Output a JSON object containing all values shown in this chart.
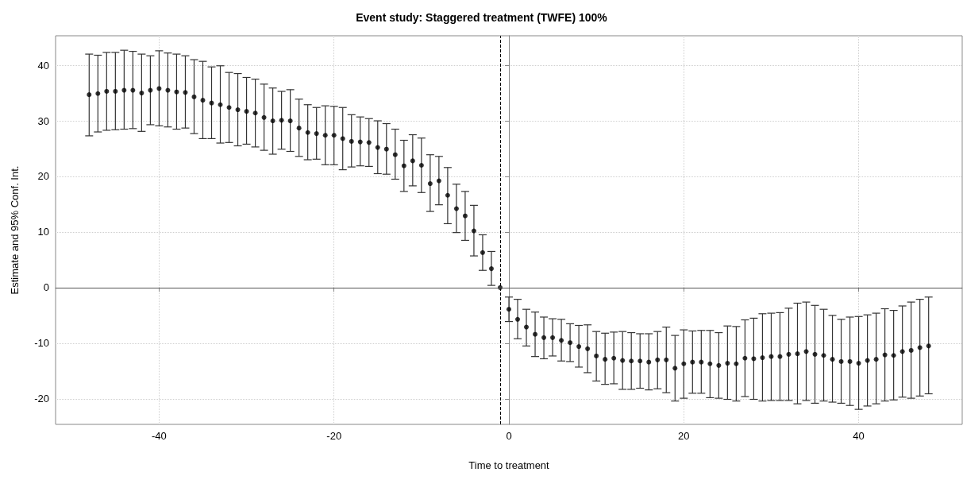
{
  "chart_data": {
    "type": "scatter",
    "title": "Event study: Staggered treatment (TWFE) 100%",
    "xlabel": "Time to treatment",
    "ylabel": "Estimate and 95% Conf. Int.",
    "x": [
      -48,
      -47,
      -46,
      -45,
      -44,
      -43,
      -42,
      -41,
      -40,
      -39,
      -38,
      -37,
      -36,
      -35,
      -34,
      -33,
      -32,
      -31,
      -30,
      -29,
      -28,
      -27,
      -26,
      -25,
      -24,
      -23,
      -22,
      -21,
      -20,
      -19,
      -18,
      -17,
      -16,
      -15,
      -14,
      -13,
      -12,
      -11,
      -10,
      -9,
      -8,
      -7,
      -6,
      -5,
      -4,
      -3,
      -2,
      -1,
      0,
      1,
      2,
      3,
      4,
      5,
      6,
      7,
      8,
      9,
      10,
      11,
      12,
      13,
      14,
      15,
      16,
      17,
      18,
      19,
      20,
      21,
      22,
      23,
      24,
      25,
      26,
      27,
      28,
      29,
      30,
      31,
      32,
      33,
      34,
      35,
      36,
      37,
      38,
      39,
      40,
      41,
      42,
      43,
      44,
      45,
      46,
      47,
      48
    ],
    "series": [
      {
        "color": "#000000",
        "values": [
          34.7,
          34.9,
          35.3,
          35.3,
          35.5,
          35.5,
          35.0,
          35.5,
          35.8,
          35.5,
          35.2,
          35.1,
          34.3,
          33.7,
          33.2,
          32.9,
          32.4,
          32.0,
          31.7,
          31.4,
          30.6,
          30.0,
          30.1,
          30.0,
          28.7,
          27.9,
          27.7,
          27.4,
          27.4,
          26.8,
          26.3,
          26.2,
          26.1,
          25.2,
          24.9,
          23.9,
          21.9,
          22.8,
          22.0,
          18.7,
          19.2,
          16.6,
          14.2,
          12.9,
          10.2,
          6.3,
          3.4,
          0,
          -3.9,
          -5.7,
          -7.1,
          -8.4,
          -9.0,
          -9.0,
          -9.5,
          -9.9,
          -10.6,
          -11.0,
          -12.3,
          -12.9,
          -12.7,
          -13.1,
          -13.2,
          -13.2,
          -13.4,
          -13.0,
          -13.0,
          -14.5,
          -13.7,
          -13.4,
          -13.4,
          -13.7,
          -14.0,
          -13.6,
          -13.7,
          -12.7,
          -12.8,
          -12.6,
          -12.4,
          -12.4,
          -12.0,
          -11.9,
          -11.5,
          -12.0,
          -12.2,
          -12.9,
          -13.3,
          -13.3,
          -13.6,
          -13.1,
          -12.9,
          -12.1,
          -12.2,
          -11.5,
          -11.3,
          -10.8,
          -10.5
        ],
        "errors": [
          [
            27.3,
            42.0
          ],
          [
            28.0,
            41.8
          ],
          [
            28.3,
            42.3
          ],
          [
            28.4,
            42.3
          ],
          [
            28.5,
            42.7
          ],
          [
            28.6,
            42.5
          ],
          [
            28.1,
            42.0
          ],
          [
            29.3,
            41.7
          ],
          [
            29.1,
            42.6
          ],
          [
            28.9,
            42.2
          ],
          [
            28.5,
            42.0
          ],
          [
            28.7,
            41.7
          ],
          [
            27.7,
            41.0
          ],
          [
            26.8,
            40.7
          ],
          [
            26.8,
            39.7
          ],
          [
            26.0,
            39.9
          ],
          [
            26.1,
            38.7
          ],
          [
            25.5,
            38.5
          ],
          [
            25.8,
            37.8
          ],
          [
            25.3,
            37.5
          ],
          [
            24.7,
            36.6
          ],
          [
            24.0,
            35.9
          ],
          [
            24.9,
            35.3
          ],
          [
            24.5,
            35.6
          ],
          [
            23.6,
            33.9
          ],
          [
            23.0,
            32.9
          ],
          [
            23.1,
            32.4
          ],
          [
            22.1,
            32.7
          ],
          [
            22.1,
            32.6
          ],
          [
            21.2,
            32.4
          ],
          [
            21.7,
            31.1
          ],
          [
            21.9,
            30.7
          ],
          [
            21.8,
            30.4
          ],
          [
            20.5,
            30.0
          ],
          [
            20.4,
            29.5
          ],
          [
            19.5,
            28.5
          ],
          [
            17.3,
            26.5
          ],
          [
            18.3,
            27.5
          ],
          [
            17.1,
            26.9
          ],
          [
            13.7,
            23.9
          ],
          [
            14.9,
            23.6
          ],
          [
            11.5,
            21.6
          ],
          [
            9.9,
            18.6
          ],
          [
            8.5,
            17.3
          ],
          [
            5.7,
            14.8
          ],
          [
            3.1,
            9.5
          ],
          [
            0.4,
            6.5
          ],
          null,
          [
            -6.1,
            -1.7
          ],
          [
            -9.2,
            -2.1
          ],
          [
            -10.5,
            -3.9
          ],
          [
            -12.4,
            -4.4
          ],
          [
            -12.8,
            -5.3
          ],
          [
            -12.3,
            -5.6
          ],
          [
            -13.2,
            -5.7
          ],
          [
            -13.3,
            -6.5
          ],
          [
            -14.3,
            -6.8
          ],
          [
            -15.3,
            -6.7
          ],
          [
            -16.8,
            -7.9
          ],
          [
            -17.4,
            -8.2
          ],
          [
            -17.3,
            -8.0
          ],
          [
            -18.3,
            -7.9
          ],
          [
            -18.3,
            -8.1
          ],
          [
            -18.1,
            -8.3
          ],
          [
            -18.4,
            -8.3
          ],
          [
            -18.2,
            -7.9
          ],
          [
            -18.9,
            -7.1
          ],
          [
            -20.4,
            -8.6
          ],
          [
            -19.9,
            -7.6
          ],
          [
            -19.0,
            -7.8
          ],
          [
            -19.0,
            -7.7
          ],
          [
            -19.8,
            -7.7
          ],
          [
            -19.9,
            -8.1
          ],
          [
            -20.1,
            -6.9
          ],
          [
            -20.4,
            -7.0
          ],
          [
            -19.6,
            -5.8
          ],
          [
            -20.1,
            -5.5
          ],
          [
            -20.4,
            -4.7
          ],
          [
            -20.3,
            -4.6
          ],
          [
            -20.3,
            -4.5
          ],
          [
            -20.3,
            -3.7
          ],
          [
            -20.9,
            -2.8
          ],
          [
            -20.3,
            -2.6
          ],
          [
            -20.8,
            -3.2
          ],
          [
            -20.4,
            -3.9
          ],
          [
            -20.6,
            -5.0
          ],
          [
            -20.8,
            -5.7
          ],
          [
            -21.2,
            -5.3
          ],
          [
            -21.9,
            -5.2
          ],
          [
            -21.3,
            -4.9
          ],
          [
            -20.9,
            -4.6
          ],
          [
            -20.4,
            -3.8
          ],
          [
            -20.2,
            -4.1
          ],
          [
            -19.7,
            -3.3
          ],
          [
            -19.9,
            -2.6
          ],
          [
            -19.5,
            -2.1
          ],
          [
            -19.1,
            -1.7
          ]
        ]
      }
    ],
    "xlim": [
      -51.84,
      51.84
    ],
    "xticks": [
      -40,
      -20,
      0,
      20,
      40
    ],
    "ylim": [
      -24.6,
      45.3
    ],
    "yticks": [
      -20,
      -10,
      0,
      10,
      20,
      30,
      40
    ],
    "ref_lines": [
      {
        "axis": "x",
        "value": -1,
        "color": "#000000",
        "line_style": "dashed"
      },
      {
        "axis": "y",
        "value": 0,
        "color": "#555555",
        "line_style": "solid"
      }
    ],
    "grid": true,
    "marker": "circle"
  }
}
